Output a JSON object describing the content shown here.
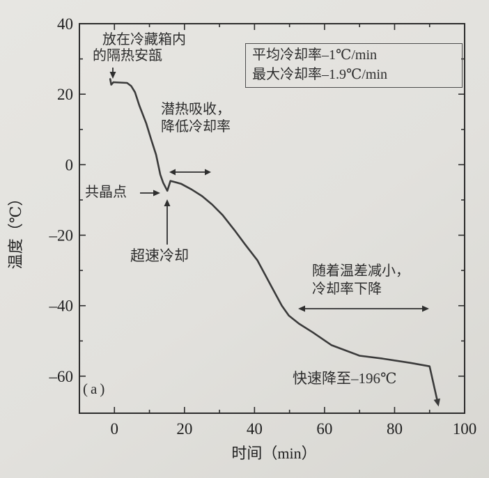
{
  "figure": {
    "background": "#e2e1dd",
    "panel_label": "(a)"
  },
  "chart_data": {
    "type": "line",
    "title": "",
    "xlabel": "时间（min）",
    "ylabel": "温度（℃）",
    "xlim": [
      -10,
      100
    ],
    "ylim": [
      -70.5,
      40
    ],
    "grid": false,
    "legend": "none",
    "x_ticks_major": [
      0,
      20,
      40,
      60,
      80,
      100
    ],
    "x_tick_labels": [
      "0",
      "20",
      "40",
      "60",
      "80",
      "100"
    ],
    "x_minor_ticks": [
      10,
      30,
      50,
      70,
      90
    ],
    "y_ticks_major": [
      40,
      20,
      0,
      -20,
      -40,
      -60
    ],
    "y_tick_labels": [
      "40",
      "20",
      "0",
      "–20",
      "–40",
      "–60"
    ],
    "y_minor_ticks": [
      30,
      10,
      -10,
      -30,
      -50
    ],
    "series": [
      {
        "name": "cooling-curve",
        "points": [
          [
            -1.2,
            24.3
          ],
          [
            -0.9,
            22.7
          ],
          [
            -0.3,
            23.4
          ],
          [
            3.6,
            23.2
          ],
          [
            4.8,
            22.3
          ],
          [
            5.9,
            20.5
          ],
          [
            7.1,
            16.8
          ],
          [
            9.1,
            11.7
          ],
          [
            10.5,
            7.1
          ],
          [
            11.9,
            2.8
          ],
          [
            13.1,
            -2.8
          ],
          [
            13.9,
            -5.1
          ],
          [
            15.1,
            -7.4
          ],
          [
            16.0,
            -4.6
          ],
          [
            19.0,
            -5.4
          ],
          [
            22.0,
            -7.0
          ],
          [
            25.0,
            -8.9
          ],
          [
            27.9,
            -11.3
          ],
          [
            30.9,
            -14.3
          ],
          [
            34.3,
            -18.6
          ],
          [
            37.3,
            -22.6
          ],
          [
            40.8,
            -27.1
          ],
          [
            44.8,
            -34.5
          ],
          [
            47.8,
            -40.0
          ],
          [
            49.8,
            -42.8
          ],
          [
            52.7,
            -45.1
          ],
          [
            56.7,
            -47.6
          ],
          [
            62.0,
            -51.2
          ],
          [
            70.0,
            -54.2
          ],
          [
            76.5,
            -55.0
          ],
          [
            84.4,
            -56.2
          ],
          [
            90.0,
            -57.2
          ],
          [
            92.1,
            -66.5
          ]
        ],
        "end_arrow": true
      }
    ],
    "annotations": [
      {
        "id": "ampoule",
        "lines": [
          "放在冷藏箱内",
          "的隔热安瓿"
        ]
      },
      {
        "id": "stats",
        "lines": [
          "平均冷却率–1℃/min",
          "最大冷却率–1.9℃/min"
        ]
      },
      {
        "id": "latent",
        "lines": [
          "潜热吸收，",
          "降低冷却率"
        ]
      },
      {
        "id": "eutectic",
        "lines": [
          "共晶点"
        ]
      },
      {
        "id": "supercool",
        "lines": [
          "超速冷却"
        ]
      },
      {
        "id": "tempdiff",
        "lines": [
          "随着温差减小，",
          "冷却率下降"
        ]
      },
      {
        "id": "rapid",
        "lines": [
          "快速降至–196℃"
        ]
      },
      {
        "id": "panel",
        "lines": [
          "(a)"
        ]
      }
    ],
    "colors": {
      "curve": "#3a3a3a",
      "frame": "#2b2b2b",
      "text": "#1f1f1f",
      "arrow": "#2e2e2e"
    }
  }
}
